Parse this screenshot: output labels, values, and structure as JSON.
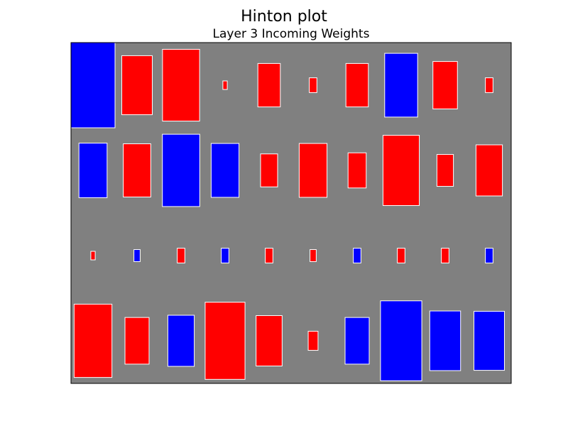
{
  "chart_data": {
    "type": "heatmap",
    "style": "hinton",
    "title": "Hinton plot",
    "subtitle": "Layer 3 Incoming Weights",
    "rows": 4,
    "cols": 10,
    "background_color": "#808080",
    "positive_color": "#ff0000",
    "negative_color": "#0000ff",
    "edge_color": "#ffffff",
    "grid": false,
    "max_abs": 1.0,
    "values": [
      [
        -1.0,
        0.48,
        0.71,
        0.01,
        0.26,
        0.03,
        0.26,
        -0.56,
        0.31,
        0.03
      ],
      [
        -0.41,
        0.39,
        -0.72,
        -0.4,
        0.15,
        0.4,
        0.17,
        0.68,
        0.14,
        0.36
      ],
      [
        0.01,
        -0.02,
        0.03,
        -0.03,
        0.03,
        0.02,
        -0.03,
        0.03,
        0.03,
        -0.03
      ],
      [
        0.74,
        0.3,
        -0.36,
        0.82,
        0.35,
        0.05,
        -0.3,
        -0.88,
        -0.49,
        -0.48
      ]
    ]
  }
}
